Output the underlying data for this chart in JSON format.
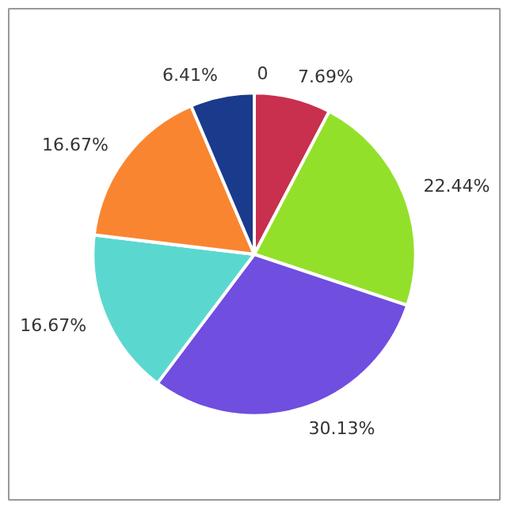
{
  "chart_data": {
    "type": "pie",
    "categories": [
      null,
      null,
      null,
      null,
      null,
      null,
      null
    ],
    "values": [
      0,
      7.69,
      22.44,
      30.13,
      16.67,
      16.67,
      6.41
    ],
    "value_labels": [
      "0",
      "7.69%",
      "22.44%",
      "30.13%",
      "16.67%",
      "16.67%",
      "6.41%"
    ],
    "colors": [
      "#c8a0a0",
      "#c8304e",
      "#93e02a",
      "#6f4ee0",
      "#5ad8d0",
      "#fa8530",
      "#1a3a8c"
    ]
  }
}
